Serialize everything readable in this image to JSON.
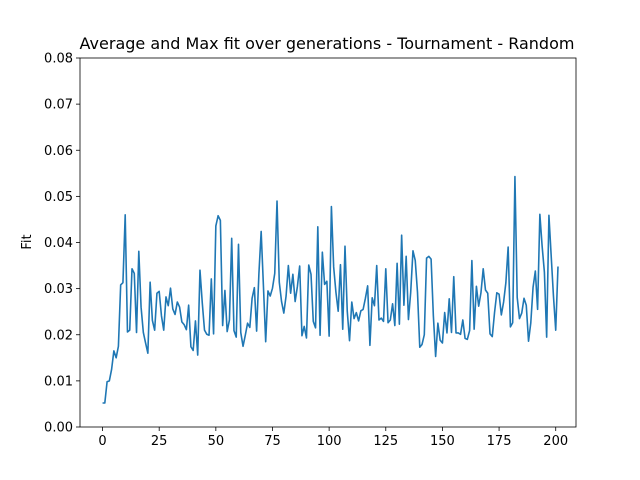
{
  "chart_data": {
    "type": "line",
    "title": "Average and Max fit over generations - Tournament - Random",
    "xlabel": "",
    "ylabel": "Fit",
    "xlim": [
      -9.95,
      208.95
    ],
    "ylim": [
      0.0,
      0.08
    ],
    "xticks": [
      0,
      25,
      50,
      75,
      100,
      125,
      150,
      175,
      200
    ],
    "yticks": [
      0.0,
      0.01,
      0.02,
      0.03,
      0.04,
      0.05,
      0.06,
      0.07,
      0.08
    ],
    "xtick_labels": [
      "0",
      "25",
      "50",
      "75",
      "100",
      "125",
      "150",
      "175",
      "200"
    ],
    "ytick_labels": [
      "0.00",
      "0.01",
      "0.02",
      "0.03",
      "0.04",
      "0.05",
      "0.06",
      "0.07",
      "0.08"
    ],
    "grid": false,
    "series": [
      {
        "color": "#1f77b4",
        "y": [
          0.0052,
          0.0052,
          0.0098,
          0.01,
          0.0125,
          0.0165,
          0.015,
          0.0175,
          0.0308,
          0.0313,
          0.046,
          0.0206,
          0.021,
          0.0343,
          0.0333,
          0.0205,
          0.0381,
          0.026,
          0.0205,
          0.0182,
          0.016,
          0.0314,
          0.0231,
          0.021,
          0.029,
          0.0294,
          0.0241,
          0.021,
          0.0282,
          0.0263,
          0.0301,
          0.0256,
          0.0244,
          0.0271,
          0.026,
          0.0228,
          0.0222,
          0.0211,
          0.0264,
          0.0174,
          0.0166,
          0.023,
          0.0156,
          0.034,
          0.027,
          0.021,
          0.0201,
          0.0199,
          0.0321,
          0.0202,
          0.0436,
          0.0458,
          0.0448,
          0.022,
          0.0296,
          0.0207,
          0.0232,
          0.0409,
          0.0209,
          0.0195,
          0.0396,
          0.0205,
          0.0175,
          0.0199,
          0.0225,
          0.0216,
          0.0279,
          0.0302,
          0.0208,
          0.0332,
          0.0424,
          0.0306,
          0.0185,
          0.0295,
          0.0284,
          0.0301,
          0.0333,
          0.049,
          0.0314,
          0.0272,
          0.0247,
          0.0284,
          0.035,
          0.029,
          0.0331,
          0.0272,
          0.0305,
          0.0349,
          0.0198,
          0.0218,
          0.0193,
          0.0351,
          0.0331,
          0.0229,
          0.0215,
          0.0434,
          0.0199,
          0.0379,
          0.0309,
          0.0316,
          0.0197,
          0.0478,
          0.0347,
          0.0292,
          0.0251,
          0.0352,
          0.0212,
          0.0392,
          0.0251,
          0.0187,
          0.0271,
          0.0235,
          0.0248,
          0.023,
          0.0252,
          0.0255,
          0.0279,
          0.0306,
          0.0177,
          0.028,
          0.0263,
          0.035,
          0.0232,
          0.0236,
          0.0229,
          0.0343,
          0.0226,
          0.0232,
          0.0267,
          0.022,
          0.0355,
          0.0223,
          0.0416,
          0.0264,
          0.037,
          0.0233,
          0.0292,
          0.0382,
          0.0361,
          0.0292,
          0.0173,
          0.0179,
          0.02,
          0.0366,
          0.037,
          0.0364,
          0.0241,
          0.0153,
          0.0225,
          0.0188,
          0.0182,
          0.0248,
          0.0204,
          0.0278,
          0.0205,
          0.0326,
          0.0204,
          0.0204,
          0.0201,
          0.0232,
          0.0192,
          0.019,
          0.0209,
          0.0361,
          0.0212,
          0.0305,
          0.0262,
          0.0291,
          0.0343,
          0.0297,
          0.029,
          0.0202,
          0.0196,
          0.0248,
          0.0291,
          0.0288,
          0.0243,
          0.0271,
          0.0313,
          0.039,
          0.0217,
          0.0226,
          0.0543,
          0.0281,
          0.0235,
          0.0247,
          0.0279,
          0.0264,
          0.0186,
          0.0226,
          0.0303,
          0.0338,
          0.0255,
          0.0461,
          0.0392,
          0.0336,
          0.0195,
          0.0459,
          0.0371,
          0.0284,
          0.021,
          0.0348
        ]
      }
    ]
  }
}
